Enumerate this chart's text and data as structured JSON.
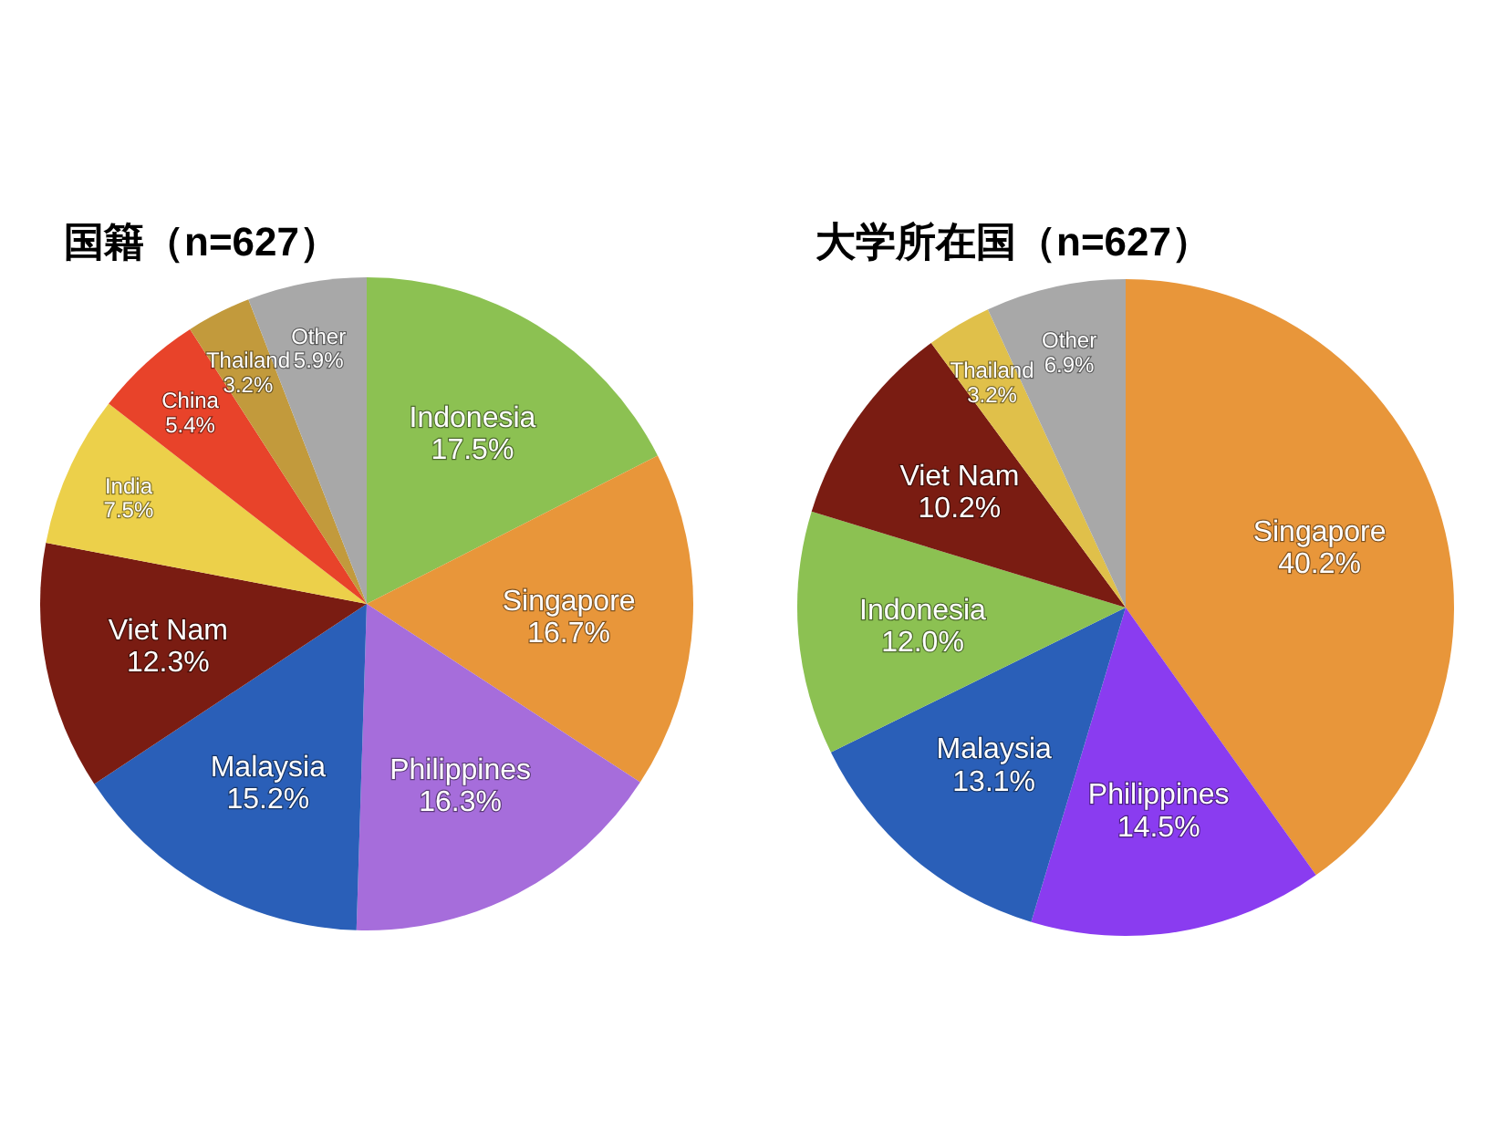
{
  "chart_data": [
    {
      "type": "pie",
      "title": "国籍（n=627）",
      "categories": [
        "Indonesia",
        "Singapore",
        "Philippines",
        "Malaysia",
        "Viet Nam",
        "India",
        "China",
        "Thailand",
        "Other"
      ],
      "values": [
        17.5,
        16.7,
        16.3,
        15.2,
        12.3,
        7.5,
        5.4,
        3.2,
        5.9
      ],
      "value_labels": [
        "17.5%",
        "16.7%",
        "16.3%",
        "15.2%",
        "12.3%",
        "7.5%",
        "5.4%",
        "3.2%",
        "5.9%"
      ],
      "colors": [
        "#8cc152",
        "#e8963a",
        "#a66ddb",
        "#2a5fb8",
        "#7a1c12",
        "#ecd04a",
        "#e8432a",
        "#c29a3c",
        "#a8a8a8"
      ]
    },
    {
      "type": "pie",
      "title": "大学所在国（n=627）",
      "categories": [
        "Singapore",
        "Philippines",
        "Malaysia",
        "Indonesia",
        "Viet Nam",
        "Thailand",
        "Other"
      ],
      "values": [
        40.2,
        14.5,
        13.1,
        12.0,
        10.2,
        3.2,
        6.9
      ],
      "value_labels": [
        "40.2%",
        "14.5%",
        "13.1%",
        "12.0%",
        "10.2%",
        "3.2%",
        "6.9%"
      ],
      "colors": [
        "#e8963a",
        "#8a3cf0",
        "#2a5fb8",
        "#8cc152",
        "#7a1c12",
        "#e0c04a",
        "#a8a8a8"
      ]
    }
  ]
}
